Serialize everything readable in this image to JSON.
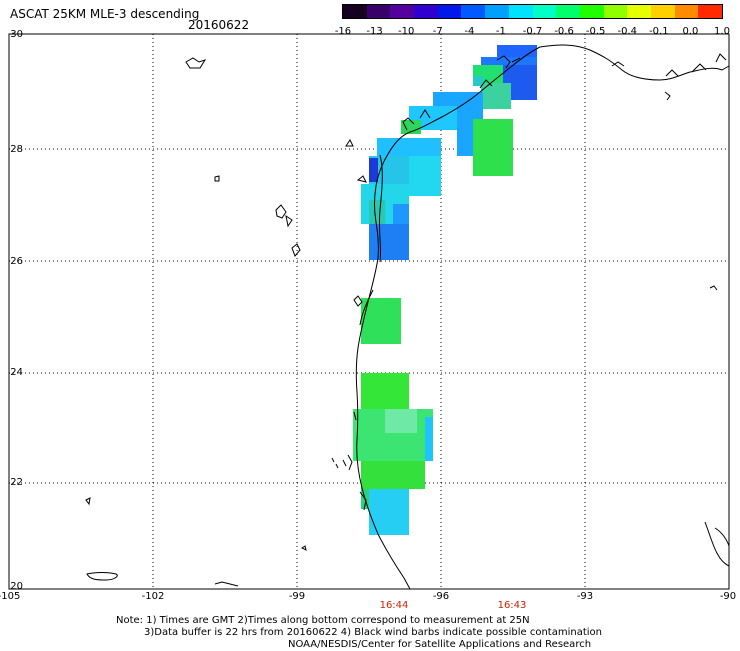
{
  "header": {
    "title": "ASCAT 25KM MLE-3 descending",
    "date": "20160622"
  },
  "colorbar": {
    "ticks": [
      "-16",
      "-13",
      "-10",
      "-7",
      "-4",
      "-1",
      "-0.7",
      "-0.6",
      "-0.5",
      "-0.4",
      "-0.1",
      "0.0",
      "1.0"
    ],
    "colors": [
      "#16001f",
      "#3a006a",
      "#52009e",
      "#3000d0",
      "#0018e8",
      "#005aff",
      "#00a0ff",
      "#00e2ff",
      "#00ffc4",
      "#00ff6a",
      "#20ff00",
      "#90ff00",
      "#e6ff00",
      "#ffd000",
      "#ff8c00",
      "#ff2a00"
    ]
  },
  "axes": {
    "lat_labels": [
      "30",
      "28",
      "26",
      "24",
      "22",
      "20"
    ],
    "lon_labels": [
      "-105",
      "-102",
      "-99",
      "-96",
      "-93",
      "-90"
    ]
  },
  "times": [
    "16:44",
    "16:43"
  ],
  "notes": {
    "line1": "Note: 1) Times are GMT 2)Times along bottom correspond to measurement at 25N",
    "line2": "3)Data buffer is 22 hrs from 20160622 4) Black wind barbs indicate possible contamination",
    "line3": "NOAA/NESDIS/Center for Satellite Applications and Research"
  }
}
